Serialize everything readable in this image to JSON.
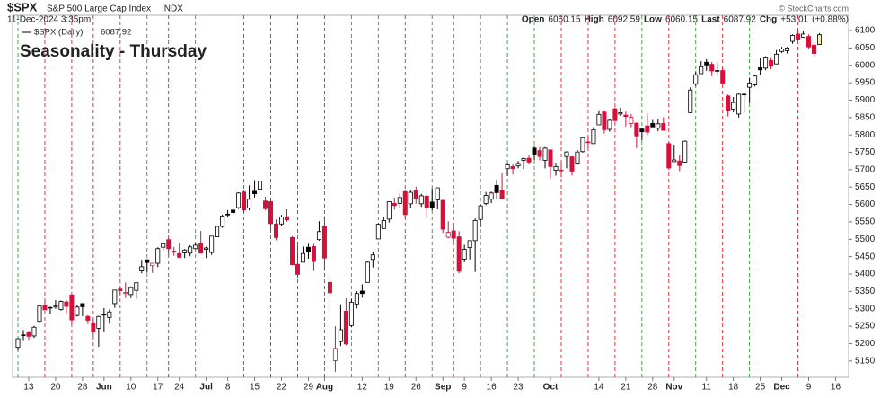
{
  "header": {
    "symbol": "$SPX",
    "name": "S&P 500 Large Cap Index",
    "exchange": "INDX",
    "timestamp": "11-Dec-2024 3:35pm",
    "open_label": "Open",
    "high_label": "High",
    "low_label": "Low",
    "last_label": "Last",
    "chg_label": "Chg",
    "chg": "+53.01",
    "chg_pct": "(+0.88%)",
    "credit": "© StockCharts.com"
  },
  "chart_data": {
    "type": "candlestick",
    "title": "Seasonality - Thursday",
    "legend": "$SPX (Daily)",
    "x": [
      "2024-05-09",
      "2024-05-10",
      "2024-05-13",
      "2024-05-14",
      "2024-05-15",
      "2024-05-16",
      "2024-05-17",
      "2024-05-20",
      "2024-05-21",
      "2024-05-22",
      "2024-05-23",
      "2024-05-24",
      "2024-05-28",
      "2024-05-29",
      "2024-05-30",
      "2024-05-31",
      "2024-06-03",
      "2024-06-04",
      "2024-06-05",
      "2024-06-06",
      "2024-06-07",
      "2024-06-10",
      "2024-06-11",
      "2024-06-12",
      "2024-06-13",
      "2024-06-14",
      "2024-06-17",
      "2024-06-18",
      "2024-06-20",
      "2024-06-21",
      "2024-06-24",
      "2024-06-25",
      "2024-06-26",
      "2024-06-27",
      "2024-06-28",
      "2024-07-01",
      "2024-07-02",
      "2024-07-03",
      "2024-07-05",
      "2024-07-08",
      "2024-07-09",
      "2024-07-10",
      "2024-07-11",
      "2024-07-12",
      "2024-07-15",
      "2024-07-16",
      "2024-07-17",
      "2024-07-18",
      "2024-07-19",
      "2024-07-22",
      "2024-07-23",
      "2024-07-24",
      "2024-07-25",
      "2024-07-26",
      "2024-07-29",
      "2024-07-30",
      "2024-07-31",
      "2024-08-01",
      "2024-08-02",
      "2024-08-05",
      "2024-08-06",
      "2024-08-07",
      "2024-08-08",
      "2024-08-09",
      "2024-08-12",
      "2024-08-13",
      "2024-08-14",
      "2024-08-15",
      "2024-08-16",
      "2024-08-19",
      "2024-08-20",
      "2024-08-21",
      "2024-08-22",
      "2024-08-23",
      "2024-08-26",
      "2024-08-27",
      "2024-08-28",
      "2024-08-29",
      "2024-08-30",
      "2024-09-03",
      "2024-09-04",
      "2024-09-05",
      "2024-09-06",
      "2024-09-09",
      "2024-09-10",
      "2024-09-11",
      "2024-09-12",
      "2024-09-13",
      "2024-09-16",
      "2024-09-17",
      "2024-09-18",
      "2024-09-19",
      "2024-09-20",
      "2024-09-23",
      "2024-09-24",
      "2024-09-25",
      "2024-09-26",
      "2024-09-27",
      "2024-09-30",
      "2024-10-01",
      "2024-10-02",
      "2024-10-03",
      "2024-10-04",
      "2024-10-07",
      "2024-10-08",
      "2024-10-09",
      "2024-10-10",
      "2024-10-11",
      "2024-10-14",
      "2024-10-15",
      "2024-10-16",
      "2024-10-17",
      "2024-10-18",
      "2024-10-21",
      "2024-10-22",
      "2024-10-23",
      "2024-10-24",
      "2024-10-25",
      "2024-10-28",
      "2024-10-29",
      "2024-10-30",
      "2024-10-31",
      "2024-11-01",
      "2024-11-04",
      "2024-11-05",
      "2024-11-06",
      "2024-11-07",
      "2024-11-08",
      "2024-11-11",
      "2024-11-12",
      "2024-11-13",
      "2024-11-14",
      "2024-11-15",
      "2024-11-18",
      "2024-11-19",
      "2024-11-20",
      "2024-11-21",
      "2024-11-22",
      "2024-11-25",
      "2024-11-26",
      "2024-11-27",
      "2024-11-29",
      "2024-12-02",
      "2024-12-03",
      "2024-12-04",
      "2024-12-05",
      "2024-12-06",
      "2024-12-09",
      "2024-12-10",
      "2024-12-11"
    ],
    "open": [
      5189,
      5225,
      5233,
      5222,
      5264,
      5310,
      5304,
      5305,
      5298,
      5320,
      5340,
      5281,
      5315,
      5278,
      5260,
      5244,
      5284,
      5275,
      5315,
      5357,
      5344,
      5341,
      5353,
      5409,
      5441,
      5424,
      5431,
      5477,
      5499,
      5466,
      5459,
      5461,
      5460,
      5473,
      5488,
      5471,
      5462,
      5507,
      5537,
      5572,
      5584,
      5591,
      5636,
      5590,
      5638,
      5644,
      5610,
      5608,
      5544,
      5544,
      5565,
      5505,
      5428,
      5434,
      5477,
      5479,
      5499,
      5537,
      5376,
      5151,
      5206,
      5293,
      5252,
      5314,
      5351,
      5376,
      5442,
      5501,
      5531,
      5558,
      5603,
      5603,
      5637,
      5602,
      5640,
      5602,
      5624,
      5607,
      5613,
      5612,
      5506,
      5524,
      5507,
      5443,
      5476,
      5496,
      5557,
      5603,
      5615,
      5655,
      5641,
      5703,
      5709,
      5711,
      5727,
      5733,
      5762,
      5755,
      5727,
      5757,
      5698,
      5697,
      5738,
      5737,
      5719,
      5752,
      5778,
      5775,
      5829,
      5866,
      5816,
      5875,
      5860,
      5857,
      5833,
      5834,
      5817,
      5826,
      5833,
      5819,
      5833,
      5775,
      5723,
      5725,
      5722,
      5864,
      5947,
      5976,
      6009,
      6003,
      5985,
      5985,
      5912,
      5874,
      5860,
      5917,
      5937,
      5944,
      5993,
      5992,
      6014,
      6004,
      6040,
      6042,
      6069,
      6090,
      6081,
      6083,
      6058,
      6060.15
    ],
    "high": [
      5215,
      5239,
      5237,
      5251,
      5309,
      5325,
      5306,
      5325,
      5324,
      5325,
      5341,
      5311,
      5315,
      5282,
      5270,
      5280,
      5302,
      5298,
      5354,
      5362,
      5376,
      5365,
      5375,
      5441,
      5442,
      5432,
      5477,
      5489,
      5505,
      5478,
      5490,
      5472,
      5483,
      5490,
      5524,
      5479,
      5510,
      5539,
      5571,
      5584,
      5590,
      5635,
      5642,
      5655,
      5670,
      5667,
      5622,
      5615,
      5557,
      5570,
      5586,
      5509,
      5491,
      5479,
      5487,
      5487,
      5552,
      5566,
      5396,
      5250,
      5313,
      5330,
      5328,
      5351,
      5371,
      5436,
      5463,
      5546,
      5563,
      5608,
      5620,
      5633,
      5643,
      5641,
      5651,
      5631,
      5628,
      5646,
      5648,
      5612,
      5552,
      5546,
      5523,
      5484,
      5497,
      5560,
      5600,
      5636,
      5637,
      5671,
      5690,
      5720,
      5716,
      5725,
      5736,
      5741,
      5767,
      5765,
      5765,
      5758,
      5720,
      5718,
      5753,
      5739,
      5757,
      5792,
      5796,
      5822,
      5871,
      5871,
      5846,
      5879,
      5878,
      5867,
      5860,
      5835,
      5817,
      5862,
      5843,
      5847,
      5851,
      5780,
      5772,
      5742,
      5784,
      5937,
      5983,
      6012,
      6018,
      6010,
      6009,
      5993,
      5916,
      5909,
      5919,
      5921,
      5964,
      5973,
      6020,
      6026,
      6021,
      6044,
      6053,
      6053,
      6089,
      6100,
      6099,
      6089,
      6066,
      6092.59
    ],
    "low": [
      5180,
      5210,
      5211,
      5216,
      5262,
      5296,
      5284,
      5300,
      5295,
      5287,
      5256,
      5278,
      5279,
      5256,
      5222,
      5191,
      5234,
      5257,
      5303,
      5343,
      5331,
      5331,
      5328,
      5402,
      5404,
      5403,
      5420,
      5468,
      5456,
      5452,
      5447,
      5446,
      5451,
      5471,
      5459,
      5446,
      5455,
      5507,
      5533,
      5563,
      5570,
      5587,
      5576,
      5583,
      5620,
      5640,
      5584,
      5523,
      5497,
      5538,
      5551,
      5425,
      5390,
      5434,
      5444,
      5409,
      5496,
      5410,
      5283,
      5119,
      5193,
      5195,
      5247,
      5301,
      5332,
      5376,
      5419,
      5501,
      5531,
      5548,
      5585,
      5591,
      5560,
      5590,
      5602,
      5593,
      5561,
      5583,
      5586,
      5518,
      5503,
      5490,
      5402,
      5434,
      5442,
      5406,
      5535,
      5598,
      5604,
      5615,
      5615,
      5682,
      5686,
      5704,
      5702,
      5716,
      5728,
      5727,
      5704,
      5675,
      5683,
      5678,
      5704,
      5683,
      5714,
      5749,
      5763,
      5775,
      5828,
      5804,
      5809,
      5838,
      5855,
      5824,
      5822,
      5762,
      5784,
      5799,
      5823,
      5811,
      5812,
      5703,
      5723,
      5696,
      5721,
      5864,
      5940,
      5976,
      5984,
      5969,
      5973,
      5947,
      5853,
      5865,
      5850,
      5865,
      5891,
      5939,
      5973,
      5986,
      5989,
      6003,
      6036,
      6034,
      6062,
      6074,
      6079,
      6048,
      6024,
      6060.15
    ],
    "close": [
      5214,
      5223,
      5221,
      5247,
      5308,
      5297,
      5303,
      5308,
      5321,
      5307,
      5268,
      5305,
      5306,
      5267,
      5235,
      5278,
      5283,
      5291,
      5354,
      5352,
      5347,
      5361,
      5375,
      5421,
      5433,
      5431,
      5473,
      5487,
      5473,
      5464,
      5448,
      5469,
      5478,
      5483,
      5460,
      5475,
      5509,
      5537,
      5567,
      5572,
      5577,
      5633,
      5584,
      5615,
      5631,
      5667,
      5588,
      5545,
      5505,
      5564,
      5556,
      5427,
      5399,
      5459,
      5464,
      5436,
      5522,
      5446,
      5346,
      5186,
      5240,
      5199,
      5319,
      5344,
      5344,
      5434,
      5455,
      5543,
      5554,
      5608,
      5597,
      5620,
      5571,
      5635,
      5616,
      5625,
      5592,
      5592,
      5648,
      5529,
      5520,
      5503,
      5408,
      5471,
      5496,
      5554,
      5596,
      5626,
      5633,
      5634,
      5618,
      5714,
      5703,
      5718,
      5732,
      5722,
      5745,
      5738,
      5762,
      5709,
      5709,
      5699,
      5751,
      5696,
      5751,
      5792,
      5780,
      5815,
      5859,
      5815,
      5842,
      5841,
      5864,
      5853,
      5851,
      5797,
      5809,
      5808,
      5823,
      5832,
      5813,
      5705,
      5728,
      5712,
      5782,
      5929,
      5973,
      5996,
      6001,
      5984,
      5985,
      5949,
      5871,
      5893,
      5917,
      5917,
      5949,
      5969,
      5987,
      6021,
      5999,
      6032,
      6047,
      6050,
      6086,
      6075,
      6090,
      6053,
      6034,
      6087.92
    ],
    "ylim": [
      5103,
      6144
    ],
    "yticks": [
      5150,
      5200,
      5250,
      5300,
      5350,
      5400,
      5450,
      5500,
      5550,
      5600,
      5650,
      5700,
      5750,
      5800,
      5850,
      5900,
      5950,
      6000,
      6050,
      6100
    ],
    "xticks": [
      {
        "value": "2024-05-13",
        "label": "13"
      },
      {
        "value": "2024-05-20",
        "label": "20"
      },
      {
        "value": "2024-05-28",
        "label": "28"
      },
      {
        "value": "2024-06-03",
        "label": "Jun"
      },
      {
        "value": "2024-06-10",
        "label": "10"
      },
      {
        "value": "2024-06-17",
        "label": "17"
      },
      {
        "value": "2024-06-24",
        "label": "24"
      },
      {
        "value": "2024-07-01",
        "label": "Jul"
      },
      {
        "value": "2024-07-08",
        "label": "8"
      },
      {
        "value": "2024-07-15",
        "label": "15"
      },
      {
        "value": "2024-07-22",
        "label": "22"
      },
      {
        "value": "2024-07-29",
        "label": "29"
      },
      {
        "value": "2024-08-01",
        "label": "Aug"
      },
      {
        "value": "2024-08-12",
        "label": "12"
      },
      {
        "value": "2024-08-19",
        "label": "19"
      },
      {
        "value": "2024-08-26",
        "label": "26"
      },
      {
        "value": "2024-09-03",
        "label": "Sep"
      },
      {
        "value": "2024-09-09",
        "label": "9"
      },
      {
        "value": "2024-09-16",
        "label": "16"
      },
      {
        "value": "2024-09-23",
        "label": "23"
      },
      {
        "value": "2024-10-01",
        "label": "Oct"
      },
      {
        "value": "2024-10-14",
        "label": "14"
      },
      {
        "value": "2024-10-21",
        "label": "21"
      },
      {
        "value": "2024-10-28",
        "label": "28"
      },
      {
        "value": "2024-11-01",
        "label": "Nov"
      },
      {
        "value": "2024-11-11",
        "label": "11"
      },
      {
        "value": "2024-11-18",
        "label": "18"
      },
      {
        "value": "2024-11-25",
        "label": "25"
      },
      {
        "value": "2024-12-02",
        "label": "Dec"
      },
      {
        "value": "2024-12-09",
        "label": "9"
      },
      {
        "value": "2024-12-16",
        "label": "16"
      }
    ],
    "up_color": "#000000",
    "down_color": "#d6103a",
    "last_bar_color": "#f7f39a",
    "title_color": "#1010d8",
    "weekday_line_colors": {
      "up": "#2f9a2f",
      "down": "#d8202c"
    }
  }
}
